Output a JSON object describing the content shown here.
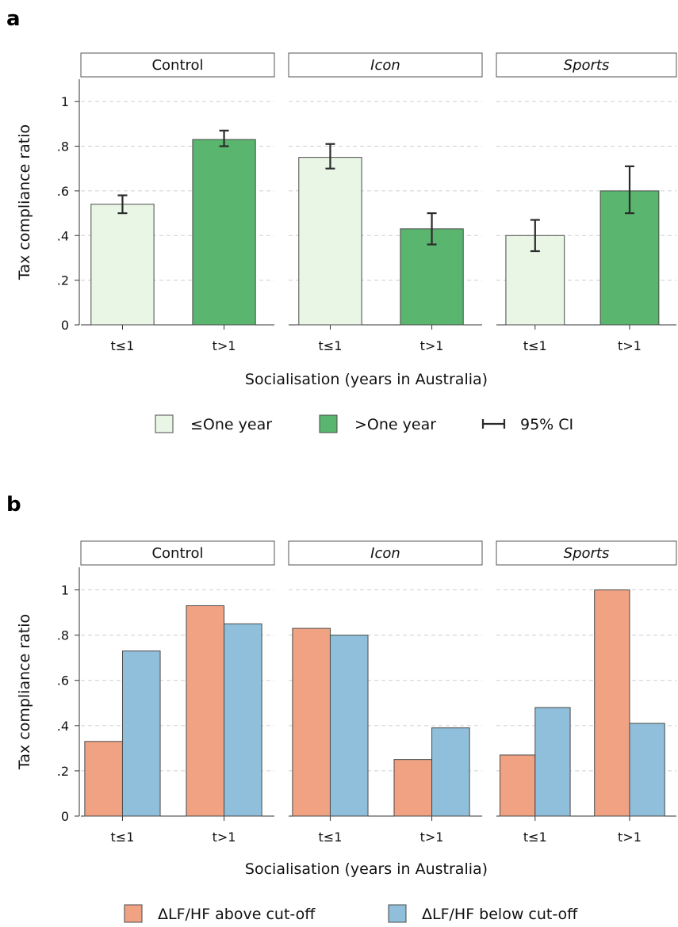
{
  "colors": {
    "le_one_year": "#e9f6e6",
    "gt_one_year": "#5ab56e",
    "above_cutoff": "#f0a283",
    "below_cutoff": "#8fbfda"
  },
  "chart_data": [
    {
      "panel": "a",
      "type": "bar",
      "facets": [
        "Control",
        "Icon",
        "Sports"
      ],
      "categories": [
        "t≤1",
        "t>1"
      ],
      "xlabel": "Socialisation (years in Australia)",
      "ylabel": "Tax compliance ratio",
      "ylim": [
        0,
        1.1
      ],
      "yticks": [
        0,
        0.2,
        0.4,
        0.6,
        0.8,
        1
      ],
      "yticklabels": [
        "0",
        ".2",
        ".4",
        ".6",
        ".8",
        "1"
      ],
      "grid": true,
      "legend_position": "bottom",
      "legend": [
        "≤One year",
        ">One year",
        "95% CI"
      ],
      "values": [
        {
          "facet": "Control",
          "category": "t≤1",
          "value": 0.54,
          "ci": [
            0.5,
            0.58
          ],
          "color_key": "le_one_year"
        },
        {
          "facet": "Control",
          "category": "t>1",
          "value": 0.83,
          "ci": [
            0.8,
            0.87
          ],
          "color_key": "gt_one_year"
        },
        {
          "facet": "Icon",
          "category": "t≤1",
          "value": 0.75,
          "ci": [
            0.7,
            0.81
          ],
          "color_key": "le_one_year"
        },
        {
          "facet": "Icon",
          "category": "t>1",
          "value": 0.43,
          "ci": [
            0.36,
            0.5
          ],
          "color_key": "gt_one_year"
        },
        {
          "facet": "Sports",
          "category": "t≤1",
          "value": 0.4,
          "ci": [
            0.33,
            0.47
          ],
          "color_key": "le_one_year"
        },
        {
          "facet": "Sports",
          "category": "t>1",
          "value": 0.6,
          "ci": [
            0.5,
            0.71
          ],
          "color_key": "gt_one_year"
        }
      ]
    },
    {
      "panel": "b",
      "type": "bar",
      "facets": [
        "Control",
        "Icon",
        "Sports"
      ],
      "categories": [
        "t≤1",
        "t>1"
      ],
      "xlabel": "Socialisation (years in Australia)",
      "ylabel": "Tax compliance ratio",
      "ylim": [
        0,
        1.1
      ],
      "yticks": [
        0,
        0.2,
        0.4,
        0.6,
        0.8,
        1
      ],
      "yticklabels": [
        "0",
        ".2",
        ".4",
        ".6",
        ".8",
        "1"
      ],
      "grid": true,
      "legend_position": "bottom",
      "series": [
        {
          "name": "ΔLF/HF above cut-off",
          "color_key": "above_cutoff",
          "values": {
            "Control": [
              0.33,
              0.93
            ],
            "Icon": [
              0.83,
              0.25
            ],
            "Sports": [
              0.27,
              1.0
            ]
          }
        },
        {
          "name": "ΔLF/HF below cut-off",
          "color_key": "below_cutoff",
          "values": {
            "Control": [
              0.73,
              0.85
            ],
            "Icon": [
              0.8,
              0.39
            ],
            "Sports": [
              0.48,
              0.41
            ]
          }
        }
      ]
    }
  ]
}
